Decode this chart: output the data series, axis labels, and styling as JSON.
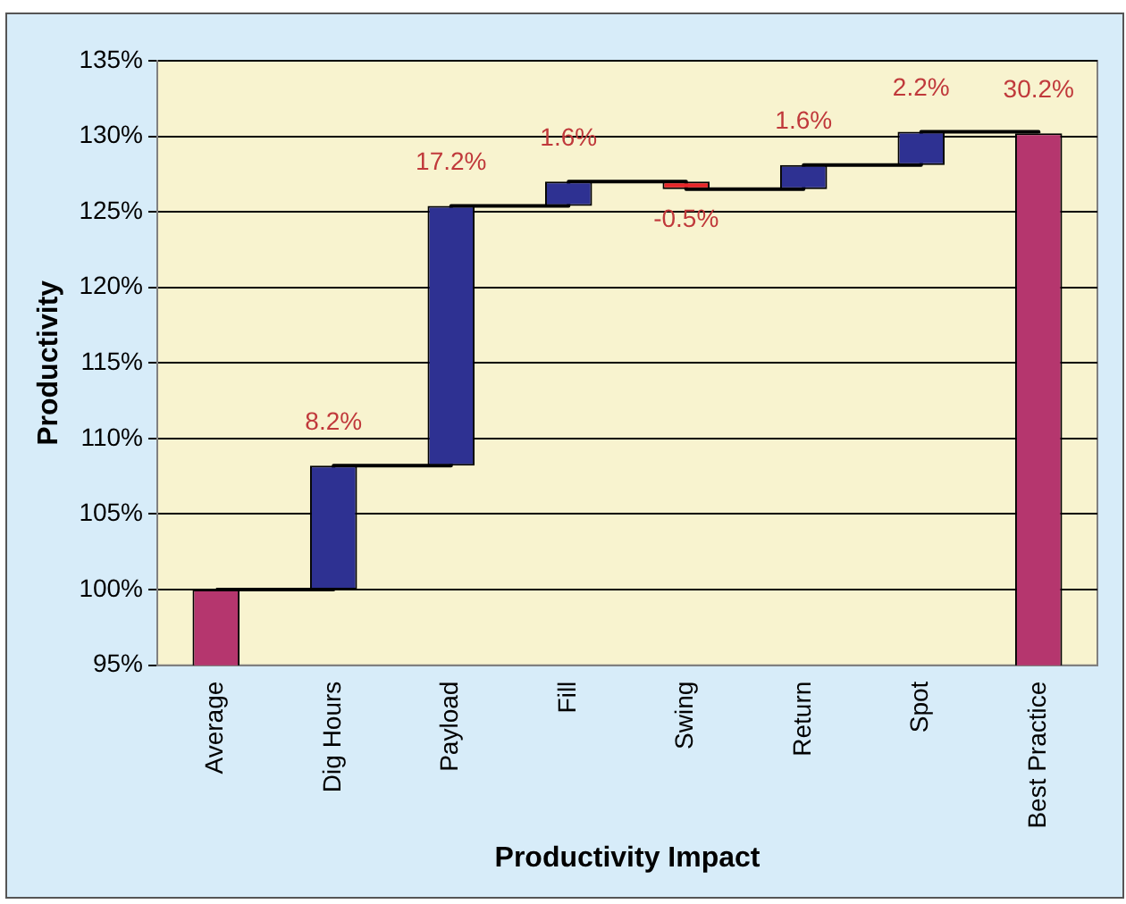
{
  "chart_data": {
    "type": "bar",
    "xlabel": "Productivity Impact",
    "ylabel": "Productivity",
    "categories": [
      "Average",
      "Dig Hours",
      "Payload",
      "Fill",
      "Swing",
      "Return",
      "Spot",
      "Best Practice"
    ],
    "series": [
      {
        "values": [
          100,
          8.2,
          17.2,
          1.6,
          -0.5,
          1.6,
          2.2,
          130.2
        ],
        "base": [
          null,
          100,
          108.2,
          125.4,
          127.0,
          126.5,
          128.1,
          null
        ],
        "colors": [
          "#b5366e",
          "#2e3192",
          "#2e3192",
          "#2e3192",
          "#e8262a",
          "#2e3192",
          "#2e3192",
          "#b5366e"
        ],
        "value_labels": [
          null,
          "8.2%",
          "17.2%",
          "1.6%",
          "-0.5%",
          "1.6%",
          "2.2%",
          null
        ]
      },
      {
        "type": "step",
        "color": "#000000",
        "values": [
          100,
          108.2,
          125.4,
          127.0,
          126.5,
          128.1,
          130.3,
          130.2
        ]
      }
    ],
    "annotations": [
      {
        "text": "30.2%",
        "x": "Best Practice",
        "y": 130.2
      }
    ],
    "ylim": [
      95,
      135
    ],
    "yticks": [
      {
        "value": 95,
        "label": "95%"
      },
      {
        "value": 100,
        "label": "100%"
      },
      {
        "value": 105,
        "label": "105%"
      },
      {
        "value": 110,
        "label": "110%"
      },
      {
        "value": 115,
        "label": "115%"
      },
      {
        "value": 120,
        "label": "120%"
      },
      {
        "value": 125,
        "label": "125%"
      },
      {
        "value": 130,
        "label": "130%"
      },
      {
        "value": 135,
        "label": "135%"
      }
    ],
    "grid": "y",
    "legend": false
  }
}
